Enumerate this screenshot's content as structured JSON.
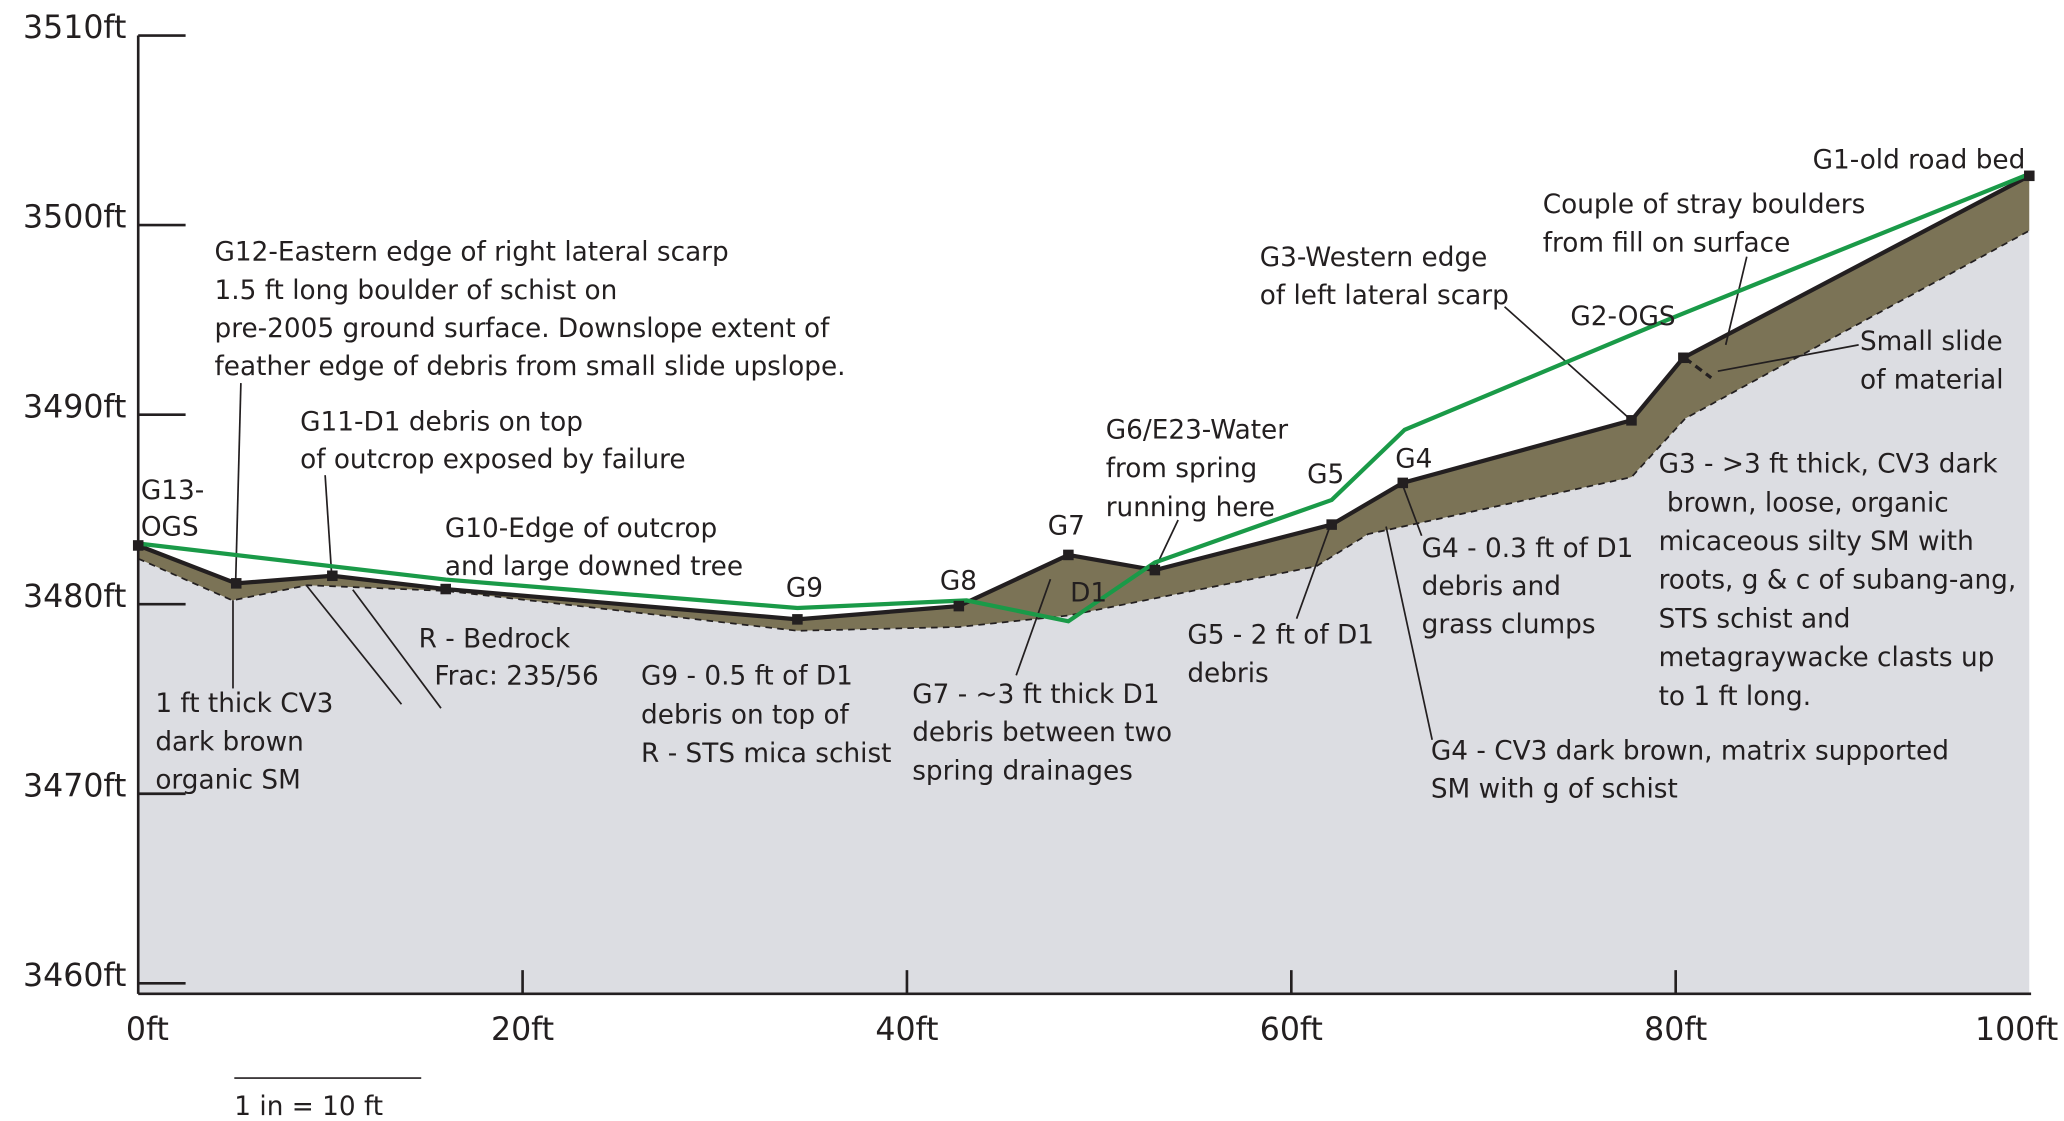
{
  "chart_data": {
    "type": "profile",
    "xlim": [
      0,
      100
    ],
    "ylim": [
      3460,
      3510
    ],
    "xticks": [
      {
        "value": 0,
        "label": "0ft"
      },
      {
        "value": 20,
        "label": "20ft"
      },
      {
        "value": 40,
        "label": "40ft"
      },
      {
        "value": 60,
        "label": "60ft"
      },
      {
        "value": 80,
        "label": "80ft"
      },
      {
        "value": 100,
        "label": "100ft"
      }
    ],
    "yticks": [
      {
        "value": 3460,
        "label": "3460ft"
      },
      {
        "value": 3470,
        "label": "3470ft"
      },
      {
        "value": 3480,
        "label": "3480ft"
      },
      {
        "value": 3490,
        "label": "3490ft"
      },
      {
        "value": 3500,
        "label": "3500ft"
      },
      {
        "value": 3510,
        "label": "3510ft"
      }
    ],
    "bedrock_color": "#dcdde2",
    "debris_color": "#7b7356",
    "series": [
      {
        "color": "#231f20",
        "x": [
          0,
          5.1,
          10.1,
          16,
          34.3,
          42.7,
          48.4,
          52.9,
          62.1,
          65.8,
          77.7,
          80.4,
          98.4
        ],
        "values": [
          3483.1,
          3481.1,
          3481.5,
          3480.8,
          3479.2,
          3479.9,
          3482.6,
          3481.8,
          3484.2,
          3486.4,
          3489.7,
          3493,
          3502.6
        ]
      },
      {
        "color": "#1a9a48",
        "x": [
          0,
          16,
          34.3,
          43.1,
          48.4,
          52.9,
          62.1,
          65.9,
          79.8,
          98.4
        ],
        "values": [
          3483.2,
          3481.3,
          3479.8,
          3480.2,
          3479.1,
          3482.2,
          3485.5,
          3489.2,
          3495.1,
          3502.7
        ]
      },
      {
        "color": "#231f20",
        "x": [
          0,
          4.9,
          8.8,
          16,
          34.3,
          42.7,
          48.4,
          61.3,
          64,
          77.7,
          80.5,
          98.4
        ],
        "values": [
          3482.4,
          3480.2,
          3481,
          3480.7,
          3478.6,
          3478.8,
          3479.4,
          3482,
          3483.7,
          3486.7,
          3489.8,
          3499.7
        ]
      }
    ],
    "annotations": [
      [
        "G1-old road bed"
      ],
      [
        "G2-OGS"
      ],
      [
        "G3-Western edge",
        "of left lateral scarp"
      ],
      [
        "Couple of stray boulders",
        "from fill on surface"
      ],
      [
        "Small slide",
        "of material"
      ],
      [
        "G3 - >3 ft thick,  CV3 dark",
        " brown, loose,  organic",
        "micaceous silty SM with",
        "roots, g & c of subang-ang,",
        "STS schist and",
        "metagraywacke clasts up",
        "to 1 ft long."
      ],
      [
        "G4"
      ],
      [
        "G5"
      ],
      [
        "G7"
      ],
      [
        "G8"
      ],
      [
        "G9"
      ],
      [
        "D1"
      ],
      [
        "G6/E23-Water",
        "from spring",
        "running here"
      ],
      [
        "G4 - 0.3 ft of D1",
        "debris and",
        "grass clumps"
      ],
      [
        "G5 - 2 ft of D1",
        "debris"
      ],
      [
        "G4 - CV3 dark brown, matrix supported",
        "SM with g of schist"
      ],
      [
        "G7 - ~3 ft thick D1",
        "debris between two",
        "spring drainages"
      ],
      [
        "G9 - 0.5 ft of D1",
        "debris on top of",
        "R - STS mica schist"
      ],
      [
        "R - Bedrock"
      ],
      [
        "Frac: 235/56"
      ],
      [
        "1 ft thick CV3",
        "dark brown",
        "organic SM"
      ],
      [
        "G10-Edge of outcrop",
        "and large downed tree"
      ],
      [
        "G11-D1 debris on top",
        "of outcrop exposed by failure"
      ],
      [
        "G12-Eastern edge of right lateral scarp",
        "1.5 ft long boulder of schist on",
        "pre-2005 ground surface. Downslope extent of",
        "feather edge of debris from small slide upslope."
      ],
      [
        "G13-",
        "OGS"
      ],
      [
        "1 in = 10 ft"
      ]
    ]
  }
}
